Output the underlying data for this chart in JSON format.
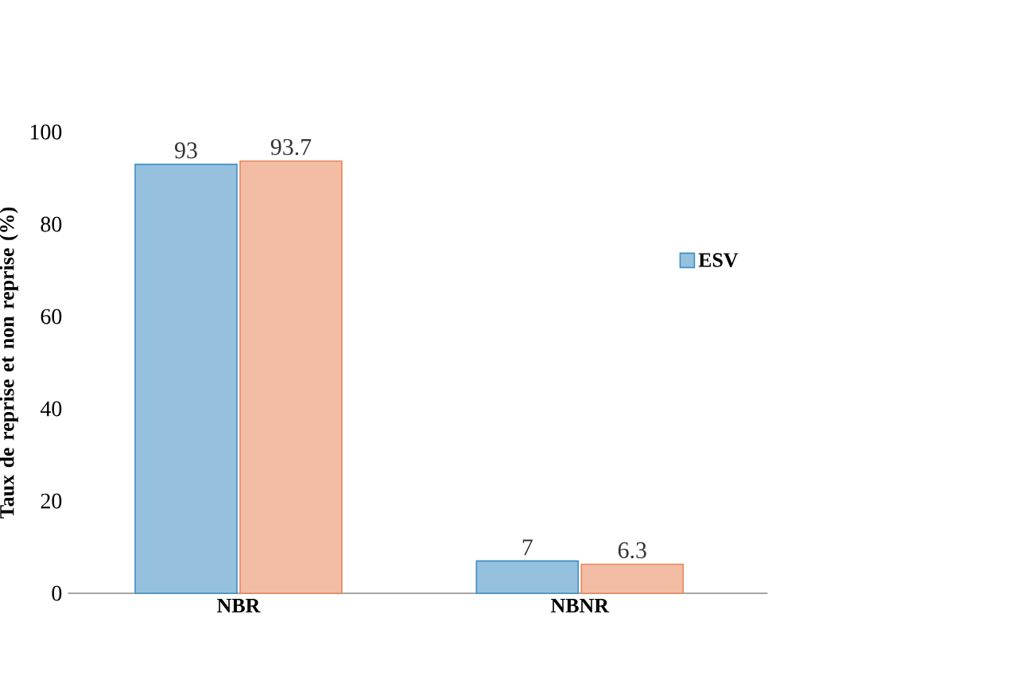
{
  "chart_data": {
    "type": "bar",
    "ylabel": "Taux de reprise et non reprise (%)",
    "categories": [
      "NBR",
      "NBNR"
    ],
    "series": [
      {
        "name": "ESV",
        "color": "#3f8fc4",
        "values": [
          93,
          7
        ]
      },
      {
        "color": "#e8875a",
        "values": [
          93.7,
          6.3
        ]
      }
    ],
    "ylim": [
      0,
      100
    ],
    "yticks": [
      0,
      20,
      40,
      60,
      80,
      100
    ],
    "data_labels": true,
    "legend": "right",
    "grid": false
  }
}
